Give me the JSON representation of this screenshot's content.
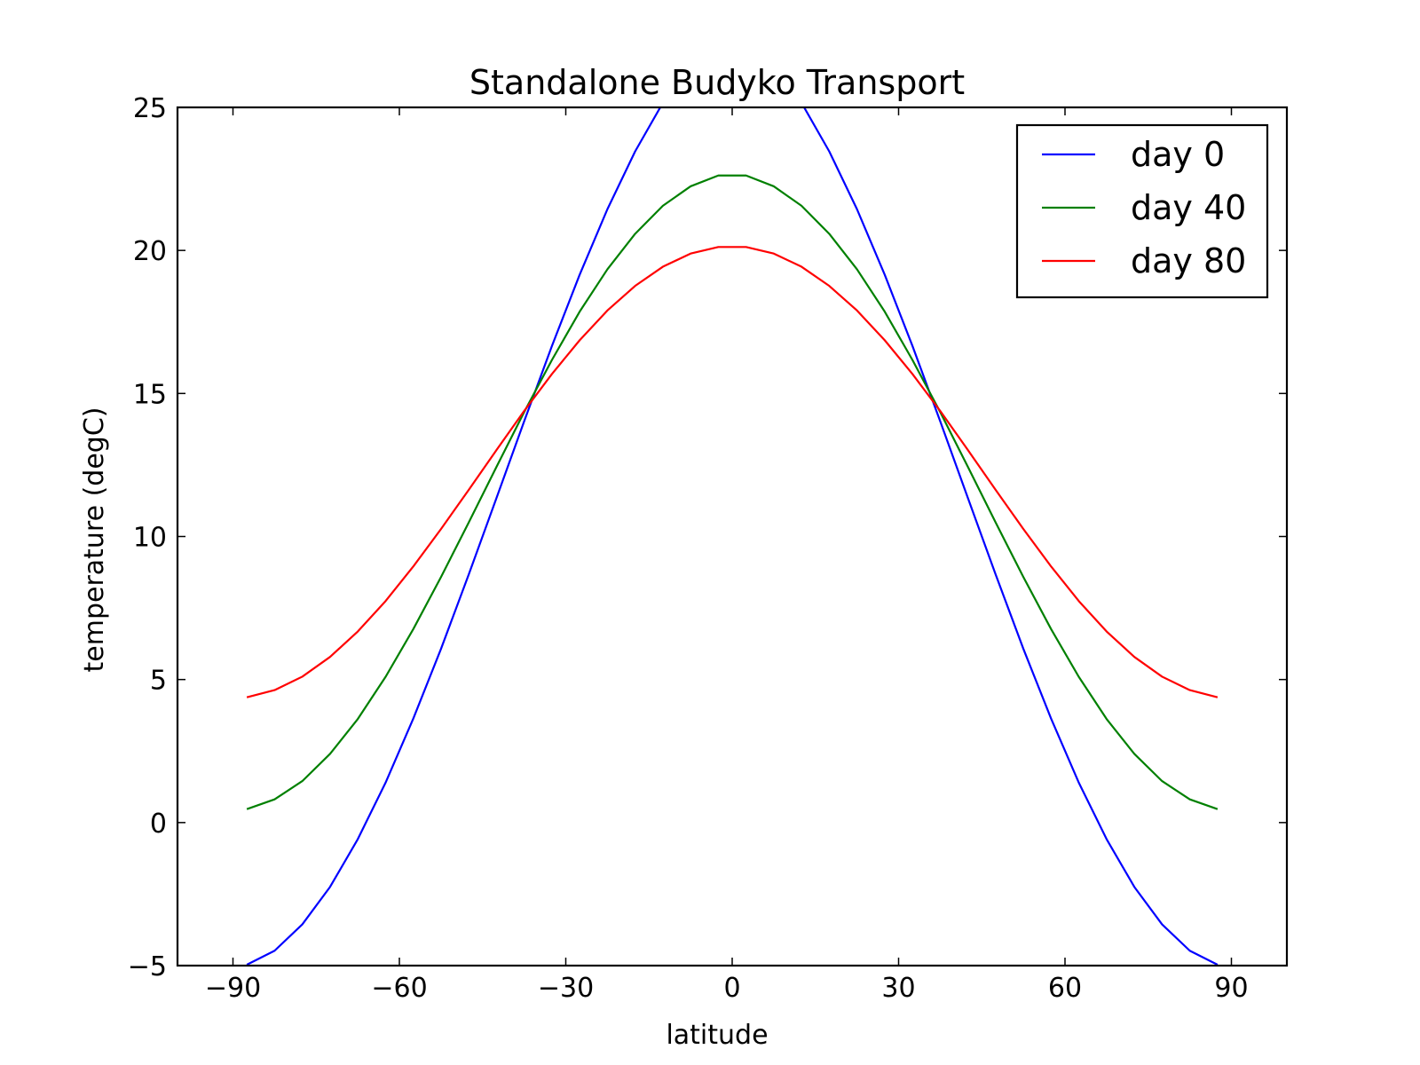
{
  "chart_data": {
    "type": "line",
    "title": "Standalone Budyko Transport",
    "xlabel": "latitude",
    "ylabel": "temperature (degC)",
    "xlim": [
      -100,
      100
    ],
    "ylim": [
      -5,
      25
    ],
    "xticks": [
      -90,
      -60,
      -30,
      0,
      30,
      60,
      90
    ],
    "xtick_labels": [
      "−90",
      "−60",
      "−30",
      "0",
      "30",
      "60",
      "90"
    ],
    "yticks": [
      -5,
      0,
      5,
      10,
      15,
      20,
      25
    ],
    "ytick_labels": [
      "−5",
      "0",
      "5",
      "10",
      "15",
      "20",
      "25"
    ],
    "grid": false,
    "legend_position": "top-right",
    "x": [
      -87.5,
      -82.5,
      -77.5,
      -72.5,
      -67.5,
      -62.5,
      -57.5,
      -52.5,
      -47.5,
      -42.5,
      -37.5,
      -32.5,
      -27.5,
      -22.5,
      -17.5,
      -12.5,
      -7.5,
      -2.5,
      2.5,
      7.5,
      12.5,
      17.5,
      22.5,
      27.5,
      32.5,
      37.5,
      42.5,
      47.5,
      52.5,
      57.5,
      62.5,
      67.5,
      72.5,
      77.5,
      82.5,
      87.5
    ],
    "series": [
      {
        "name": "day 0",
        "color": "#0000ff",
        "values": [
          -4.97,
          -4.48,
          -3.56,
          -2.25,
          -0.58,
          1.39,
          3.63,
          6.07,
          8.67,
          11.34,
          14.03,
          16.66,
          19.15,
          21.44,
          23.46,
          25.16,
          26.48,
          27.4,
          27.4,
          26.48,
          25.16,
          23.46,
          21.44,
          19.15,
          16.66,
          14.03,
          11.34,
          8.67,
          6.07,
          3.63,
          1.39,
          -0.58,
          -2.25,
          -3.56,
          -4.48,
          -4.97
        ]
      },
      {
        "name": "day 40",
        "color": "#008000",
        "values": [
          0.47,
          0.81,
          1.45,
          2.4,
          3.62,
          5.09,
          6.76,
          8.58,
          10.49,
          12.43,
          14.35,
          16.17,
          17.86,
          19.34,
          20.58,
          21.56,
          22.24,
          22.62,
          22.62,
          22.24,
          21.56,
          20.58,
          19.34,
          17.86,
          16.17,
          14.35,
          12.43,
          10.49,
          8.58,
          6.76,
          5.09,
          3.62,
          2.4,
          1.45,
          0.81,
          0.47
        ]
      },
      {
        "name": "day 80",
        "color": "#ff0000",
        "values": [
          4.38,
          4.63,
          5.1,
          5.79,
          6.68,
          7.74,
          8.95,
          10.26,
          11.63,
          13.02,
          14.39,
          15.68,
          16.86,
          17.9,
          18.76,
          19.43,
          19.89,
          20.12,
          20.12,
          19.89,
          19.43,
          18.76,
          17.9,
          16.86,
          15.68,
          14.39,
          13.02,
          11.63,
          10.26,
          8.95,
          7.74,
          6.68,
          5.79,
          5.1,
          4.63,
          4.38
        ]
      }
    ]
  }
}
